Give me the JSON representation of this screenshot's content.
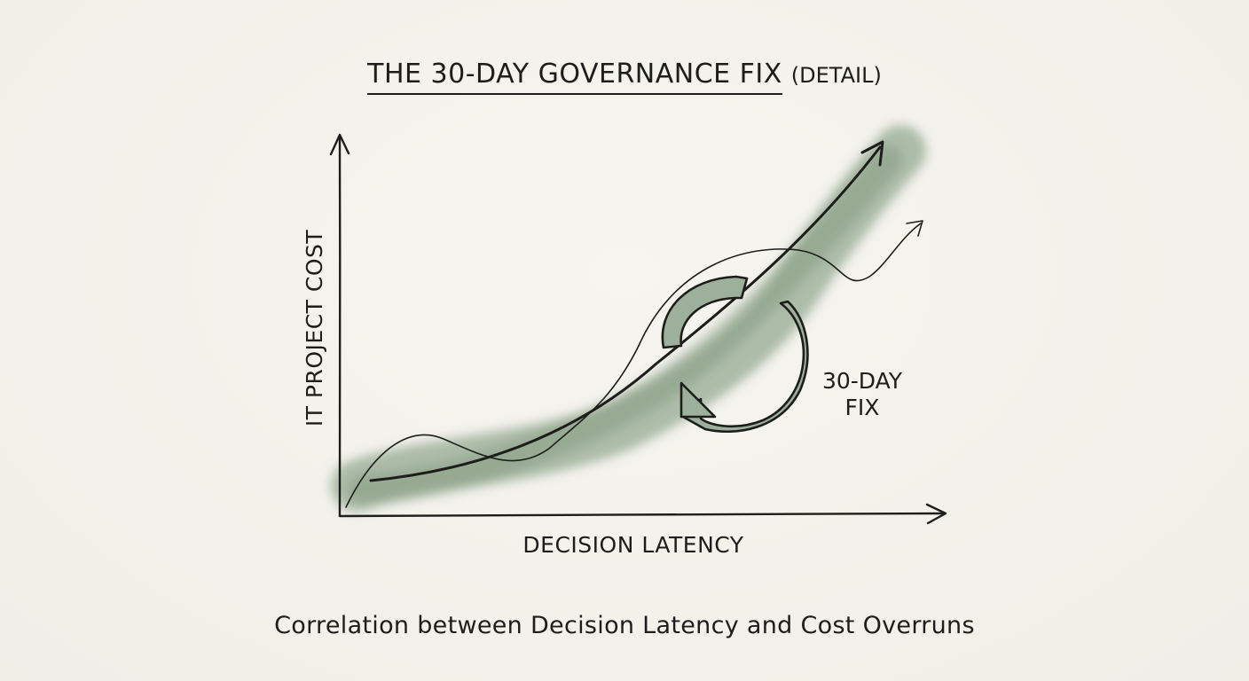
{
  "title": {
    "main": "THE 30-DAY GOVERNANCE FIX",
    "detail": "(DETAIL)"
  },
  "axes": {
    "x_label": "DECISION LATENCY",
    "y_label": "IT PROJECT COST"
  },
  "annotation": {
    "line1": "30-DAY",
    "line2": "FIX"
  },
  "caption": "Correlation between Decision Latency and Cost Overruns",
  "colors": {
    "ink": "#1d1d1b",
    "wash": "#7f9a7e",
    "arrow_fill": "#9db09b",
    "paper": "#f3f2ec"
  },
  "icons": {
    "cycle": "circular-arrows-icon"
  }
}
